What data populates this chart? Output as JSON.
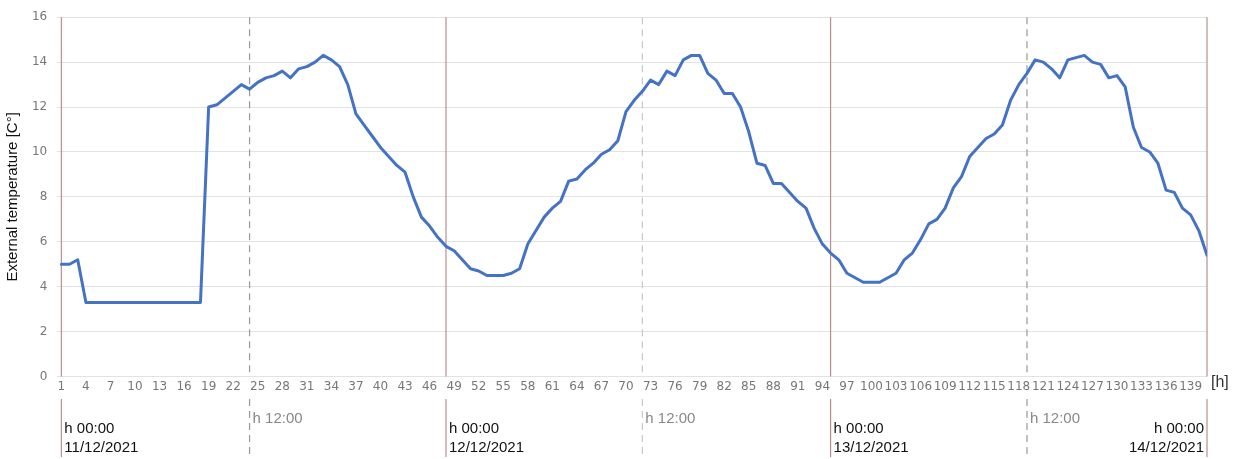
{
  "chart_data": {
    "type": "line",
    "ylabel": "External temperature [C°]",
    "xlabel": "[h]",
    "x": [
      1,
      2,
      3,
      4,
      5,
      6,
      7,
      8,
      9,
      10,
      11,
      12,
      13,
      14,
      15,
      16,
      17,
      18,
      19,
      20,
      21,
      22,
      23,
      24,
      25,
      26,
      27,
      28,
      29,
      30,
      31,
      32,
      33,
      34,
      35,
      36,
      37,
      38,
      39,
      40,
      41,
      42,
      43,
      44,
      45,
      46,
      47,
      48,
      49,
      50,
      51,
      52,
      53,
      54,
      55,
      56,
      57,
      58,
      59,
      60,
      61,
      62,
      63,
      64,
      65,
      66,
      67,
      68,
      69,
      70,
      71,
      72,
      73,
      74,
      75,
      76,
      77,
      78,
      79,
      80,
      81,
      82,
      83,
      84,
      85,
      86,
      87,
      88,
      89,
      90,
      91,
      92,
      93,
      94,
      95,
      96,
      97,
      98,
      99,
      100,
      101,
      102,
      103,
      104,
      105,
      106,
      107,
      108,
      109,
      110,
      111,
      112,
      113,
      114,
      115,
      116,
      117,
      118,
      119,
      120,
      121,
      122,
      123,
      124,
      125,
      126,
      127,
      128,
      129,
      130,
      131,
      132,
      133,
      134,
      135,
      136,
      137,
      138,
      139,
      140,
      141
    ],
    "series": [
      {
        "color": "#4472c4",
        "values": [
          5.0,
          5.0,
          5.2,
          3.3,
          3.3,
          3.3,
          3.3,
          3.3,
          3.3,
          3.3,
          3.3,
          3.3,
          3.3,
          3.3,
          3.3,
          3.3,
          3.3,
          3.3,
          12.0,
          12.1,
          12.4,
          12.7,
          13.0,
          12.8,
          13.1,
          13.3,
          13.4,
          13.6,
          13.3,
          13.7,
          13.8,
          14.0,
          14.3,
          14.1,
          13.8,
          13.0,
          11.7,
          11.2,
          10.7,
          10.2,
          9.8,
          9.4,
          9.1,
          8.0,
          7.1,
          6.7,
          6.2,
          5.8,
          5.6,
          5.2,
          4.8,
          4.7,
          4.5,
          4.5,
          4.5,
          4.6,
          4.8,
          5.9,
          6.5,
          7.1,
          7.5,
          7.8,
          8.7,
          8.8,
          9.2,
          9.5,
          9.9,
          10.1,
          10.5,
          11.8,
          12.3,
          12.7,
          13.2,
          13.0,
          13.6,
          13.4,
          14.1,
          14.3,
          14.3,
          13.5,
          13.2,
          12.6,
          12.6,
          12.0,
          10.9,
          9.5,
          9.4,
          8.6,
          8.6,
          8.2,
          7.8,
          7.5,
          6.6,
          5.9,
          5.5,
          5.2,
          4.6,
          4.4,
          4.2,
          4.2,
          4.2,
          4.4,
          4.6,
          5.2,
          5.5,
          6.1,
          6.8,
          7.0,
          7.5,
          8.4,
          8.9,
          9.8,
          10.2,
          10.6,
          10.8,
          11.2,
          12.3,
          13.0,
          13.5,
          14.1,
          14.0,
          13.7,
          13.3,
          14.1,
          14.2,
          14.3,
          14.0,
          13.9,
          13.3,
          13.4,
          12.9,
          11.1,
          10.2,
          10.0,
          9.5,
          8.3,
          8.2,
          7.5,
          7.2,
          6.5,
          5.4
        ]
      }
    ],
    "xlim": [
      0.5,
      141
    ],
    "xticks": [
      1,
      4,
      7,
      10,
      13,
      16,
      19,
      22,
      25,
      28,
      31,
      34,
      37,
      40,
      43,
      46,
      49,
      52,
      55,
      58,
      61,
      64,
      67,
      70,
      73,
      76,
      79,
      82,
      85,
      88,
      91,
      94,
      97,
      100,
      103,
      106,
      109,
      112,
      115,
      118,
      121,
      124,
      127,
      130,
      133,
      136,
      139
    ],
    "ylim": [
      0,
      16
    ],
    "yticks": [
      0,
      2,
      4,
      6,
      8,
      10,
      12,
      14,
      16
    ],
    "grid": "y",
    "legend": false,
    "marker": "none",
    "line_style": "solid",
    "ref_lines": [
      {
        "axis": "x",
        "value": 1,
        "color": "#b89090",
        "line_style": "solid"
      },
      {
        "axis": "x",
        "value": 24,
        "color": "#999999",
        "line_style": "dashed"
      },
      {
        "axis": "x",
        "value": 48,
        "color": "#b89090",
        "line_style": "solid"
      },
      {
        "axis": "x",
        "value": 72,
        "color": "#c8c8c8",
        "line_style": "dashed"
      },
      {
        "axis": "x",
        "value": 95,
        "color": "#b89090",
        "line_style": "solid"
      },
      {
        "axis": "x",
        "value": 119,
        "color": "#999999",
        "line_style": "dashed"
      },
      {
        "axis": "x",
        "value": 141,
        "color": "#b89090",
        "line_style": "solid"
      }
    ],
    "annotations": [
      "h 00:00\n11/12/2021",
      "h 12:00",
      "h 00:00\n12/12/2021",
      "h 12:00",
      "h 00:00\n13/12/2021",
      "h 12:00",
      "h 00:00\n14/12/2021"
    ]
  }
}
